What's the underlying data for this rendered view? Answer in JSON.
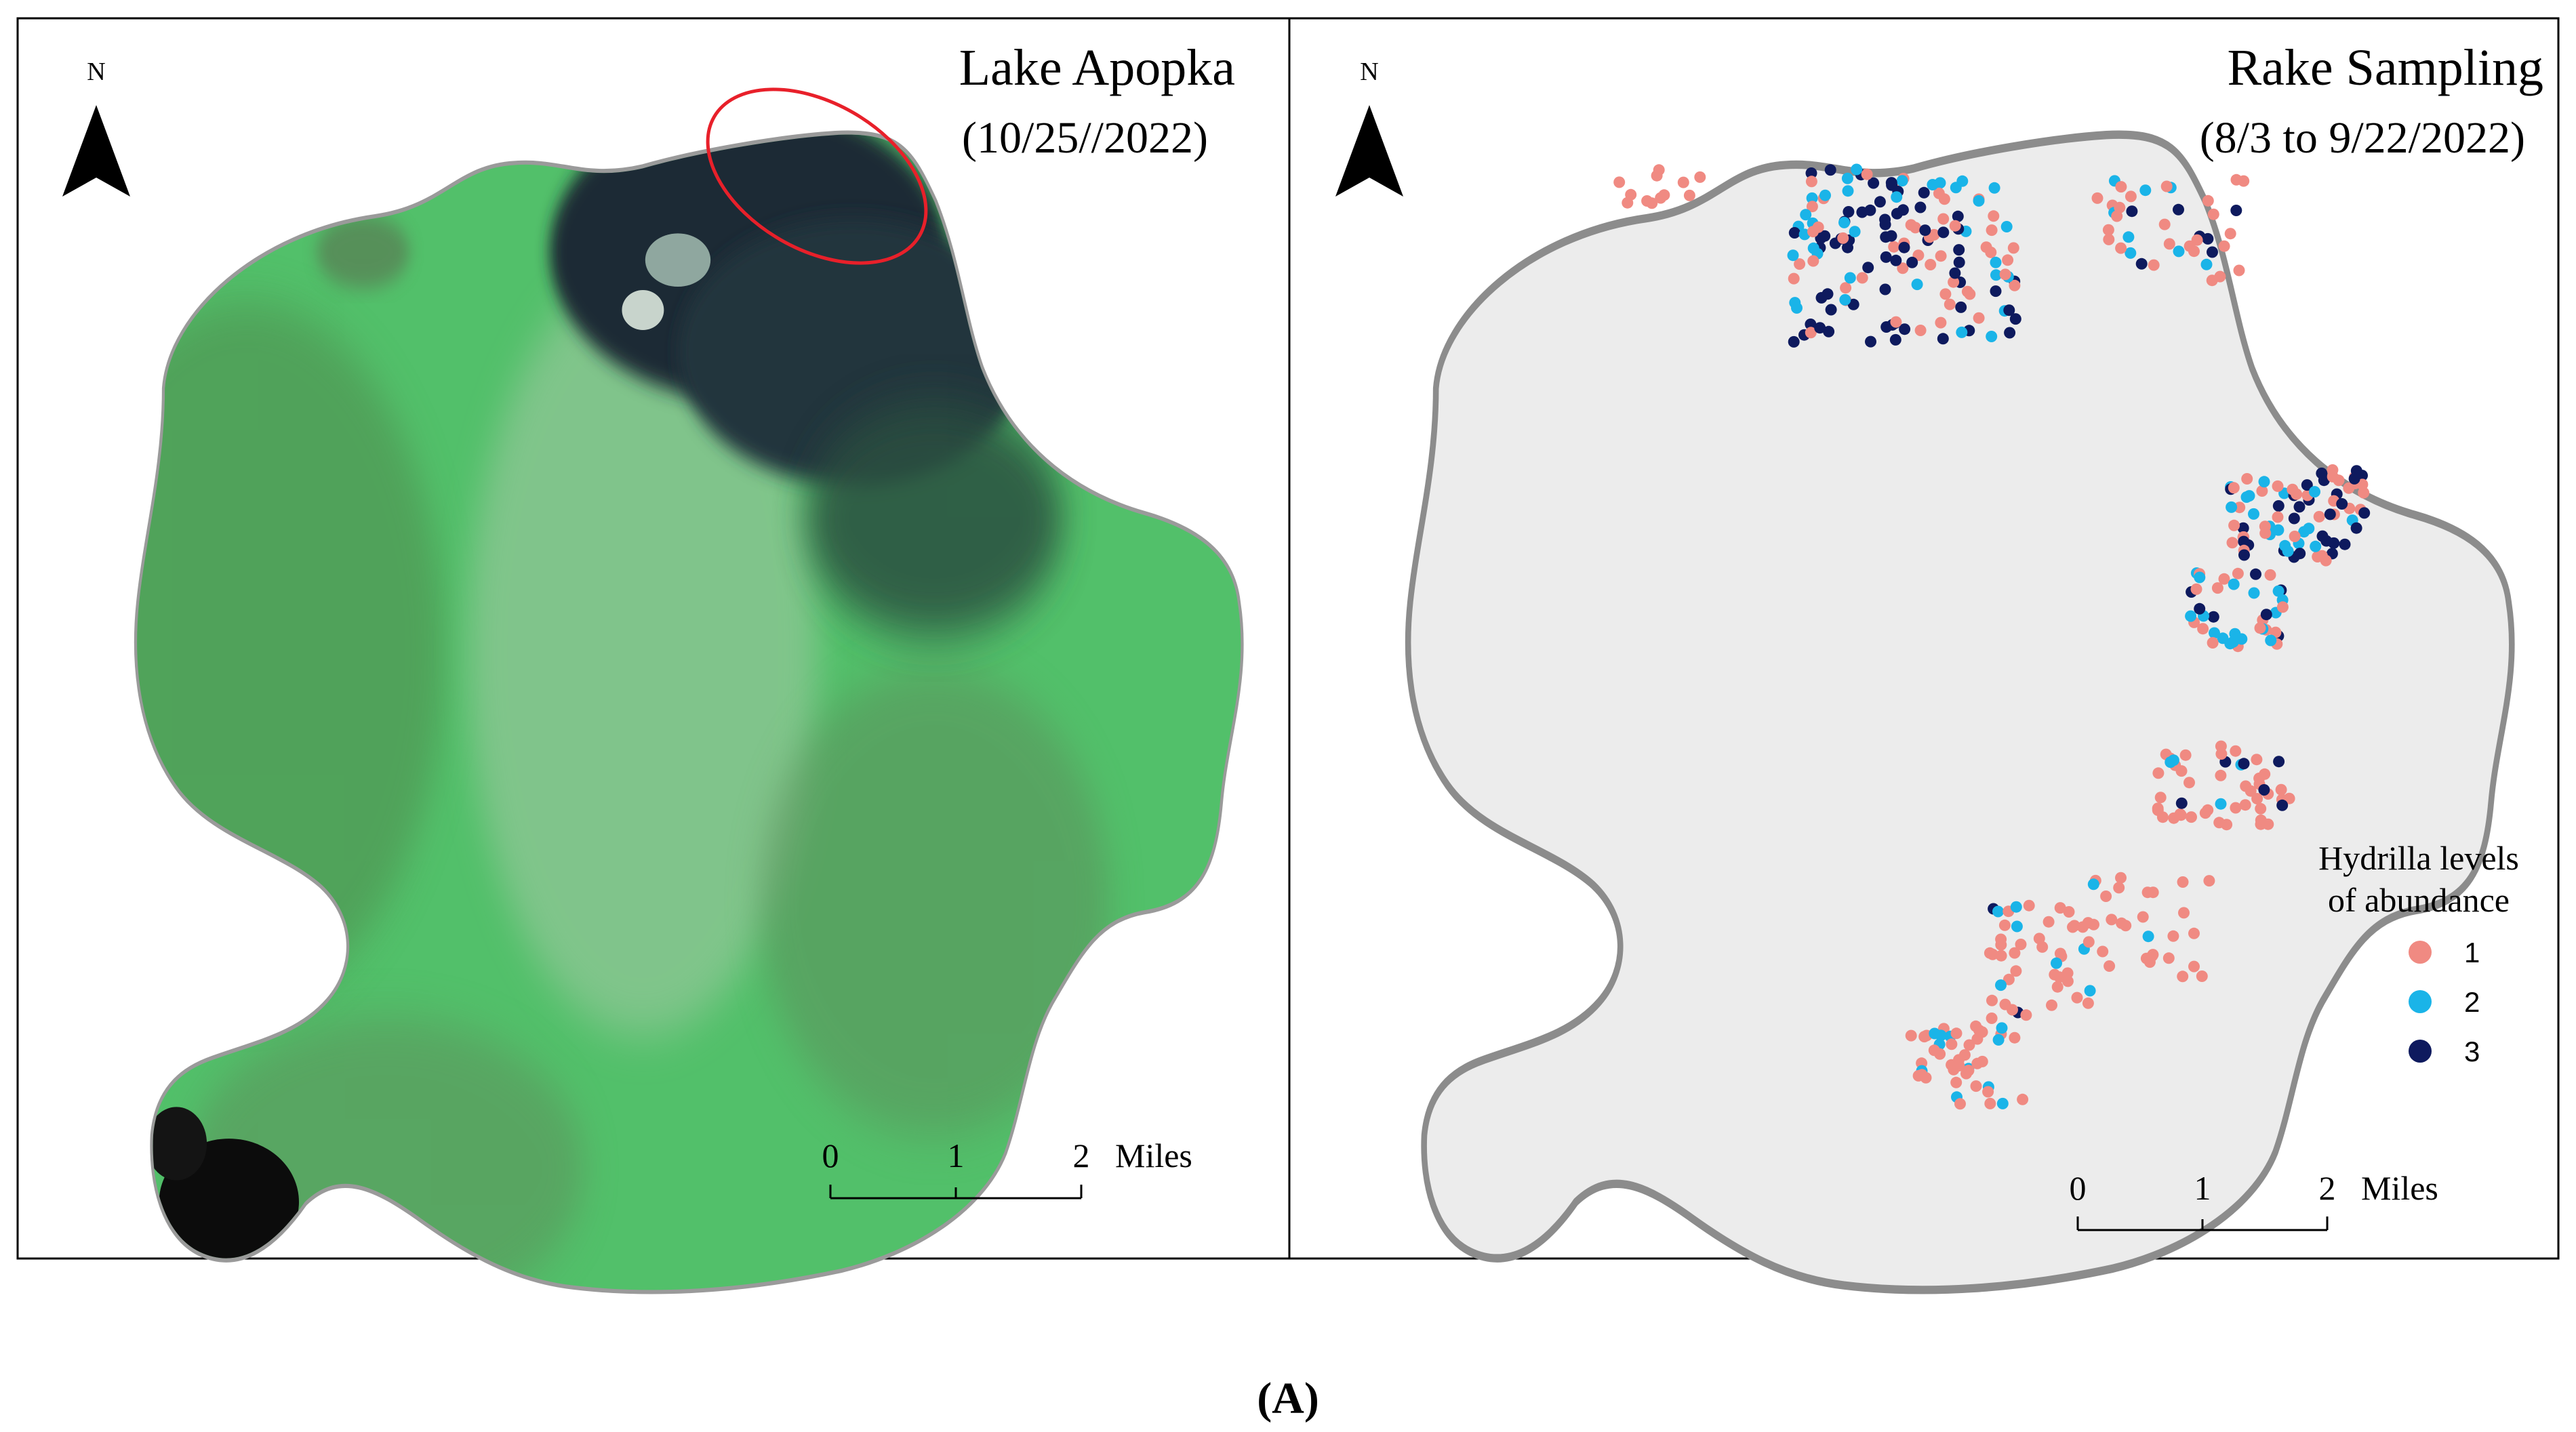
{
  "left_panel": {
    "title": "Lake Apopka",
    "date": "(10/25//2022)",
    "north_label": "N",
    "scale_labels": [
      "0",
      "1",
      "2"
    ],
    "scale_unit": "Miles",
    "highlight_color": "#e8202a"
  },
  "right_panel": {
    "title": "Rake Sampling",
    "date": "(8/3 to 9/22/2022)",
    "north_label": "N",
    "scale_labels": [
      "0",
      "1",
      "2"
    ],
    "scale_unit": "Miles",
    "legend": {
      "title_line1": "Hydrilla levels",
      "title_line2": "of abundance",
      "items": [
        {
          "label": "1",
          "color": "#f08a82"
        },
        {
          "label": "2",
          "color": "#1ab4e8"
        },
        {
          "label": "3",
          "color": "#0e1a5e"
        }
      ]
    }
  },
  "caption": "(A)",
  "colors": {
    "lake_fill": "#ececec",
    "lake_outline": "#8c8c8c",
    "water_green": "#52c06a",
    "hydrilla_dark": "#1a2a36"
  }
}
